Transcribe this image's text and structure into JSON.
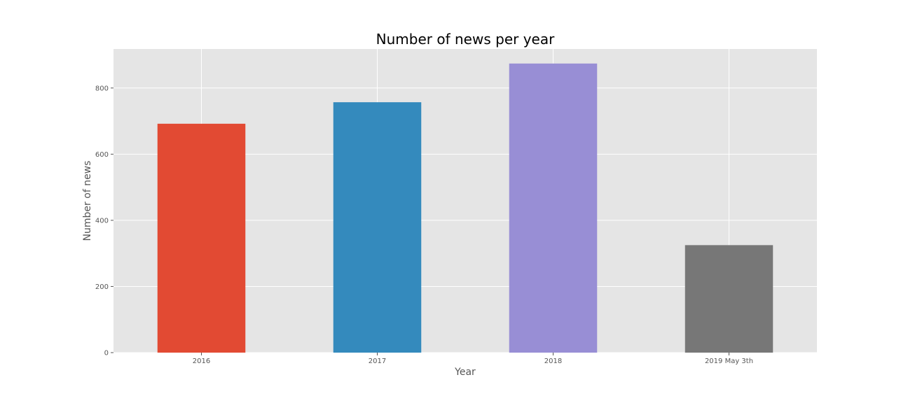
{
  "chart_data": {
    "type": "bar",
    "title": "Number of news per year",
    "xlabel": "Year",
    "ylabel": "Number of news",
    "categories": [
      "2016",
      "2017",
      "2018",
      "2019 May 3th"
    ],
    "values": [
      692,
      757,
      874,
      325
    ],
    "colors": [
      "#E24A33",
      "#348ABD",
      "#988ED5",
      "#777777"
    ],
    "ylim": [
      0,
      918
    ],
    "yticks": [
      0,
      200,
      400,
      600,
      800
    ],
    "grid": true,
    "background": "#E5E5E5",
    "style": "ggplot"
  }
}
